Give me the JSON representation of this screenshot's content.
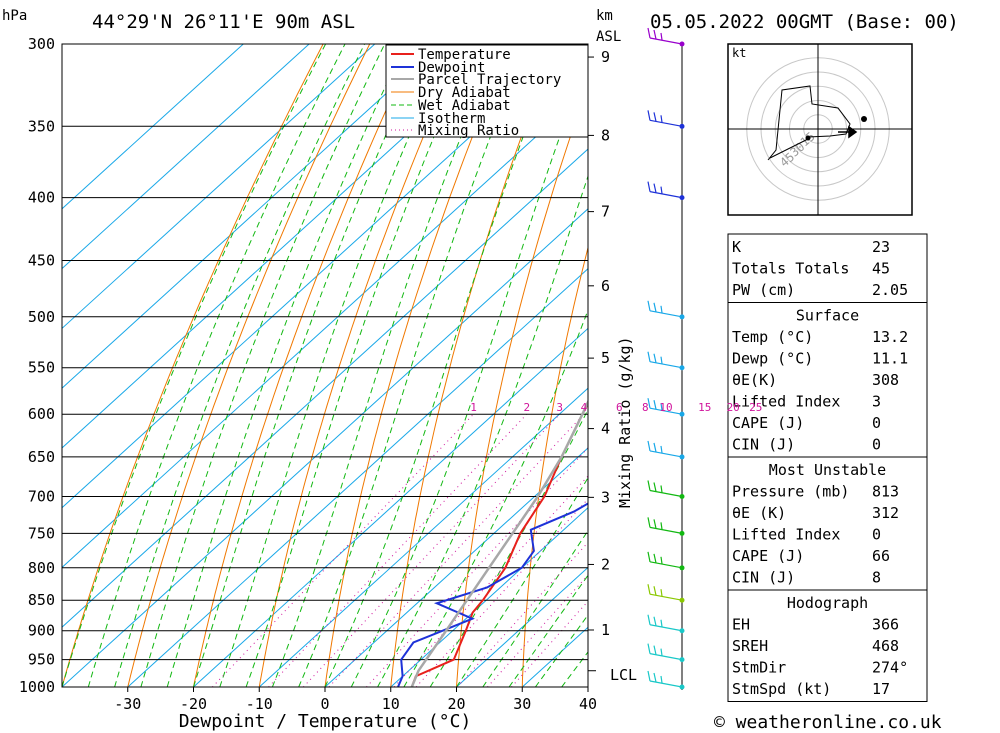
{
  "header": {
    "location": "44°29'N 26°11'E 90m ASL",
    "datetime": "05.05.2022 00GMT (Base: 00)",
    "p_unit": "hPa",
    "km_unit_1": "km",
    "km_unit_2": "ASL"
  },
  "footer": {
    "credit": "© weatheronline.co.uk"
  },
  "colors": {
    "temperature": "#e8201c",
    "dewpoint": "#1e32d8",
    "parcel": "#a8a8a8",
    "dry_adiabat": "#f07800",
    "wet_adiabat": "#12b812",
    "isotherm": "#19a8e8",
    "mixing_ratio": "#d0149c"
  },
  "chart_data": {
    "type": "line",
    "title": "",
    "xlabel": "Dewpoint / Temperature (°C)",
    "ylabel": "",
    "xlim": [
      -40,
      40
    ],
    "ylim": [
      1000,
      300
    ],
    "x_ticks": [
      -30,
      -20,
      -10,
      0,
      10,
      20,
      30,
      40
    ],
    "x_tick_labels": [
      "-30",
      "-20",
      "-10",
      "0",
      "10",
      "20",
      "30",
      "40"
    ],
    "pressure_levels": [
      300,
      350,
      400,
      450,
      500,
      550,
      600,
      650,
      700,
      750,
      800,
      850,
      900,
      950,
      1000
    ],
    "pressure_labels": [
      "300",
      "350",
      "400",
      "450",
      "500",
      "550",
      "600",
      "650",
      "700",
      "750",
      "800",
      "850",
      "900",
      "950",
      "1000"
    ],
    "km_ticks": [
      {
        "km": 1,
        "label": "1"
      },
      {
        "km": 2,
        "label": "2"
      },
      {
        "km": 3,
        "label": "3"
      },
      {
        "km": 4,
        "label": "4"
      },
      {
        "km": 5,
        "label": "5"
      },
      {
        "km": 6,
        "label": "6"
      },
      {
        "km": 7,
        "label": "7"
      },
      {
        "km": 8,
        "label": "8"
      },
      {
        "km": 9,
        "label": "9"
      }
    ],
    "lcl_label": "LCL",
    "lcl_pressure": 970,
    "mixing_ratio_axis_label": "Mixing Ratio (g/kg)",
    "mixing_ratio_values": [
      1,
      2,
      3,
      4,
      6,
      8,
      10,
      15,
      20,
      25
    ],
    "mixing_ratio_labels": [
      "1",
      "2",
      "3",
      "4",
      "6",
      "8",
      "10",
      "15",
      "20",
      "25"
    ],
    "legend": [
      "Temperature",
      "Dewpoint",
      "Parcel Trajectory",
      "Dry Adiabat",
      "Wet Adiabat",
      "Isotherm",
      "Mixing Ratio"
    ],
    "legend_position": "top-right",
    "series": [
      {
        "name": "Temperature",
        "points": [
          [
            1000,
            13.2
          ],
          [
            980,
            12.0
          ],
          [
            950,
            15.0
          ],
          [
            900,
            12.0
          ],
          [
            870,
            10.0
          ],
          [
            850,
            9.5
          ],
          [
            800,
            7.5
          ],
          [
            750,
            4.0
          ],
          [
            700,
            1.5
          ],
          [
            650,
            -2.5
          ],
          [
            600,
            -6.5
          ],
          [
            550,
            -10.5
          ],
          [
            500,
            -16.0
          ],
          [
            450,
            -21.0
          ],
          [
            400,
            -27.0
          ],
          [
            350,
            -35.0
          ],
          [
            320,
            -40.0
          ],
          [
            300,
            -43.0
          ]
        ]
      },
      {
        "name": "Dewpoint",
        "points": [
          [
            1000,
            11.1
          ],
          [
            980,
            10.0
          ],
          [
            950,
            7.0
          ],
          [
            920,
            6.0
          ],
          [
            880,
            11.0
          ],
          [
            855,
            3.0
          ],
          [
            830,
            8.0
          ],
          [
            800,
            10.0
          ],
          [
            775,
            9.0
          ],
          [
            745,
            5.0
          ],
          [
            720,
            8.5
          ],
          [
            700,
            10.0
          ],
          [
            650,
            8.0
          ],
          [
            600,
            5.5
          ],
          [
            550,
            3.0
          ],
          [
            530,
            -3.0
          ],
          [
            500,
            -5.0
          ],
          [
            480,
            -4.0
          ],
          [
            450,
            -11.0
          ],
          [
            430,
            -18.0
          ],
          [
            400,
            -16.0
          ],
          [
            350,
            -20.0
          ],
          [
            320,
            -16.0
          ],
          [
            300,
            -21.0
          ]
        ]
      },
      {
        "name": "Parcel Trajectory",
        "points": [
          [
            1000,
            13.2
          ],
          [
            970,
            11.5
          ],
          [
            900,
            9.0
          ],
          [
            800,
            5.0
          ],
          [
            700,
            0.5
          ],
          [
            650,
            -2.5
          ],
          [
            600,
            -6.5
          ],
          [
            550,
            -11.0
          ],
          [
            500,
            -17.0
          ],
          [
            450,
            -23.0
          ],
          [
            400,
            -30.5
          ],
          [
            350,
            -39.5
          ],
          [
            310,
            -48.0
          ]
        ]
      }
    ]
  },
  "hodograph": {
    "unit": "kt",
    "ring_labels": [
      "15",
      "30",
      "45"
    ],
    "ring_speeds": [
      15,
      30,
      45
    ]
  },
  "wind_profile": {
    "description_levels": [
      300,
      350,
      400,
      500,
      550,
      600,
      650,
      700,
      750,
      800,
      850,
      900,
      950,
      1000
    ]
  },
  "indices": {
    "basic": [
      {
        "label": "K",
        "value": "23"
      },
      {
        "label": "Totals Totals",
        "value": "45"
      },
      {
        "label": "PW (cm)",
        "value": "2.05"
      }
    ],
    "surface": {
      "title": "Surface",
      "rows": [
        {
          "label": "Temp (°C)",
          "value": "13.2"
        },
        {
          "label": "Dewp (°C)",
          "value": "11.1"
        },
        {
          "label": "θE(K)",
          "value": "308"
        },
        {
          "label": "Lifted Index",
          "value": "3"
        },
        {
          "label": "CAPE (J)",
          "value": "0"
        },
        {
          "label": "CIN (J)",
          "value": "0"
        }
      ]
    },
    "most_unstable": {
      "title": "Most Unstable",
      "rows": [
        {
          "label": "Pressure (mb)",
          "value": "813"
        },
        {
          "label": "θE (K)",
          "value": "312"
        },
        {
          "label": "Lifted Index",
          "value": "0"
        },
        {
          "label": "CAPE (J)",
          "value": "66"
        },
        {
          "label": "CIN (J)",
          "value": "8"
        }
      ]
    },
    "hodograph": {
      "title": "Hodograph",
      "rows": [
        {
          "label": "EH",
          "value": "366"
        },
        {
          "label": "SREH",
          "value": "468"
        },
        {
          "label": "StmDir",
          "value": "274°"
        },
        {
          "label": "StmSpd (kt)",
          "value": "17"
        }
      ]
    }
  }
}
